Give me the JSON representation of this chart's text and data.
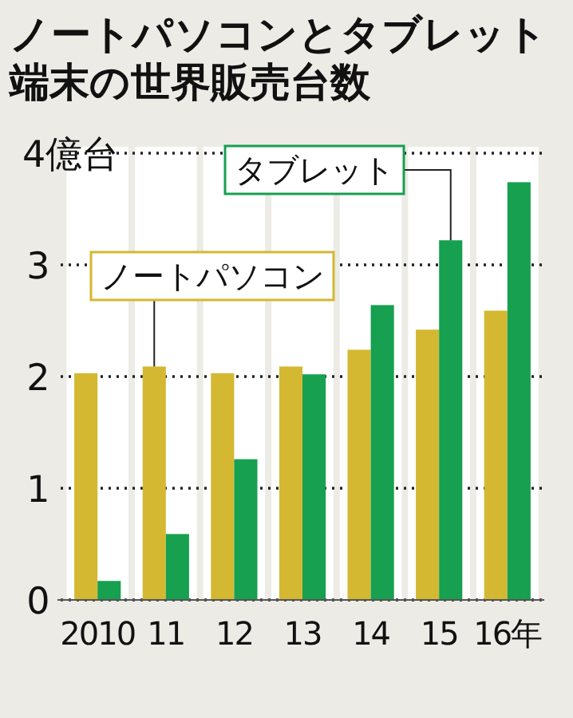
{
  "chart_data": {
    "type": "bar",
    "title": "ノートパソコンとタブレット端末の世界販売台数",
    "categories": [
      "2010",
      "11",
      "12",
      "13",
      "14",
      "15",
      "16年"
    ],
    "series": [
      {
        "name": "ノートパソコン",
        "color": "#d4b832",
        "values": [
          2.03,
          2.09,
          2.03,
          2.09,
          2.24,
          2.42,
          2.59
        ]
      },
      {
        "name": "タブレット",
        "color": "#16a050",
        "values": [
          0.17,
          0.59,
          1.26,
          2.02,
          2.64,
          3.22,
          3.74
        ]
      }
    ],
    "ylim": [
      0,
      4
    ],
    "yticks": [
      0,
      1,
      2,
      3,
      {
        "value": 4,
        "label": "4億台"
      }
    ],
    "grid": "y"
  }
}
